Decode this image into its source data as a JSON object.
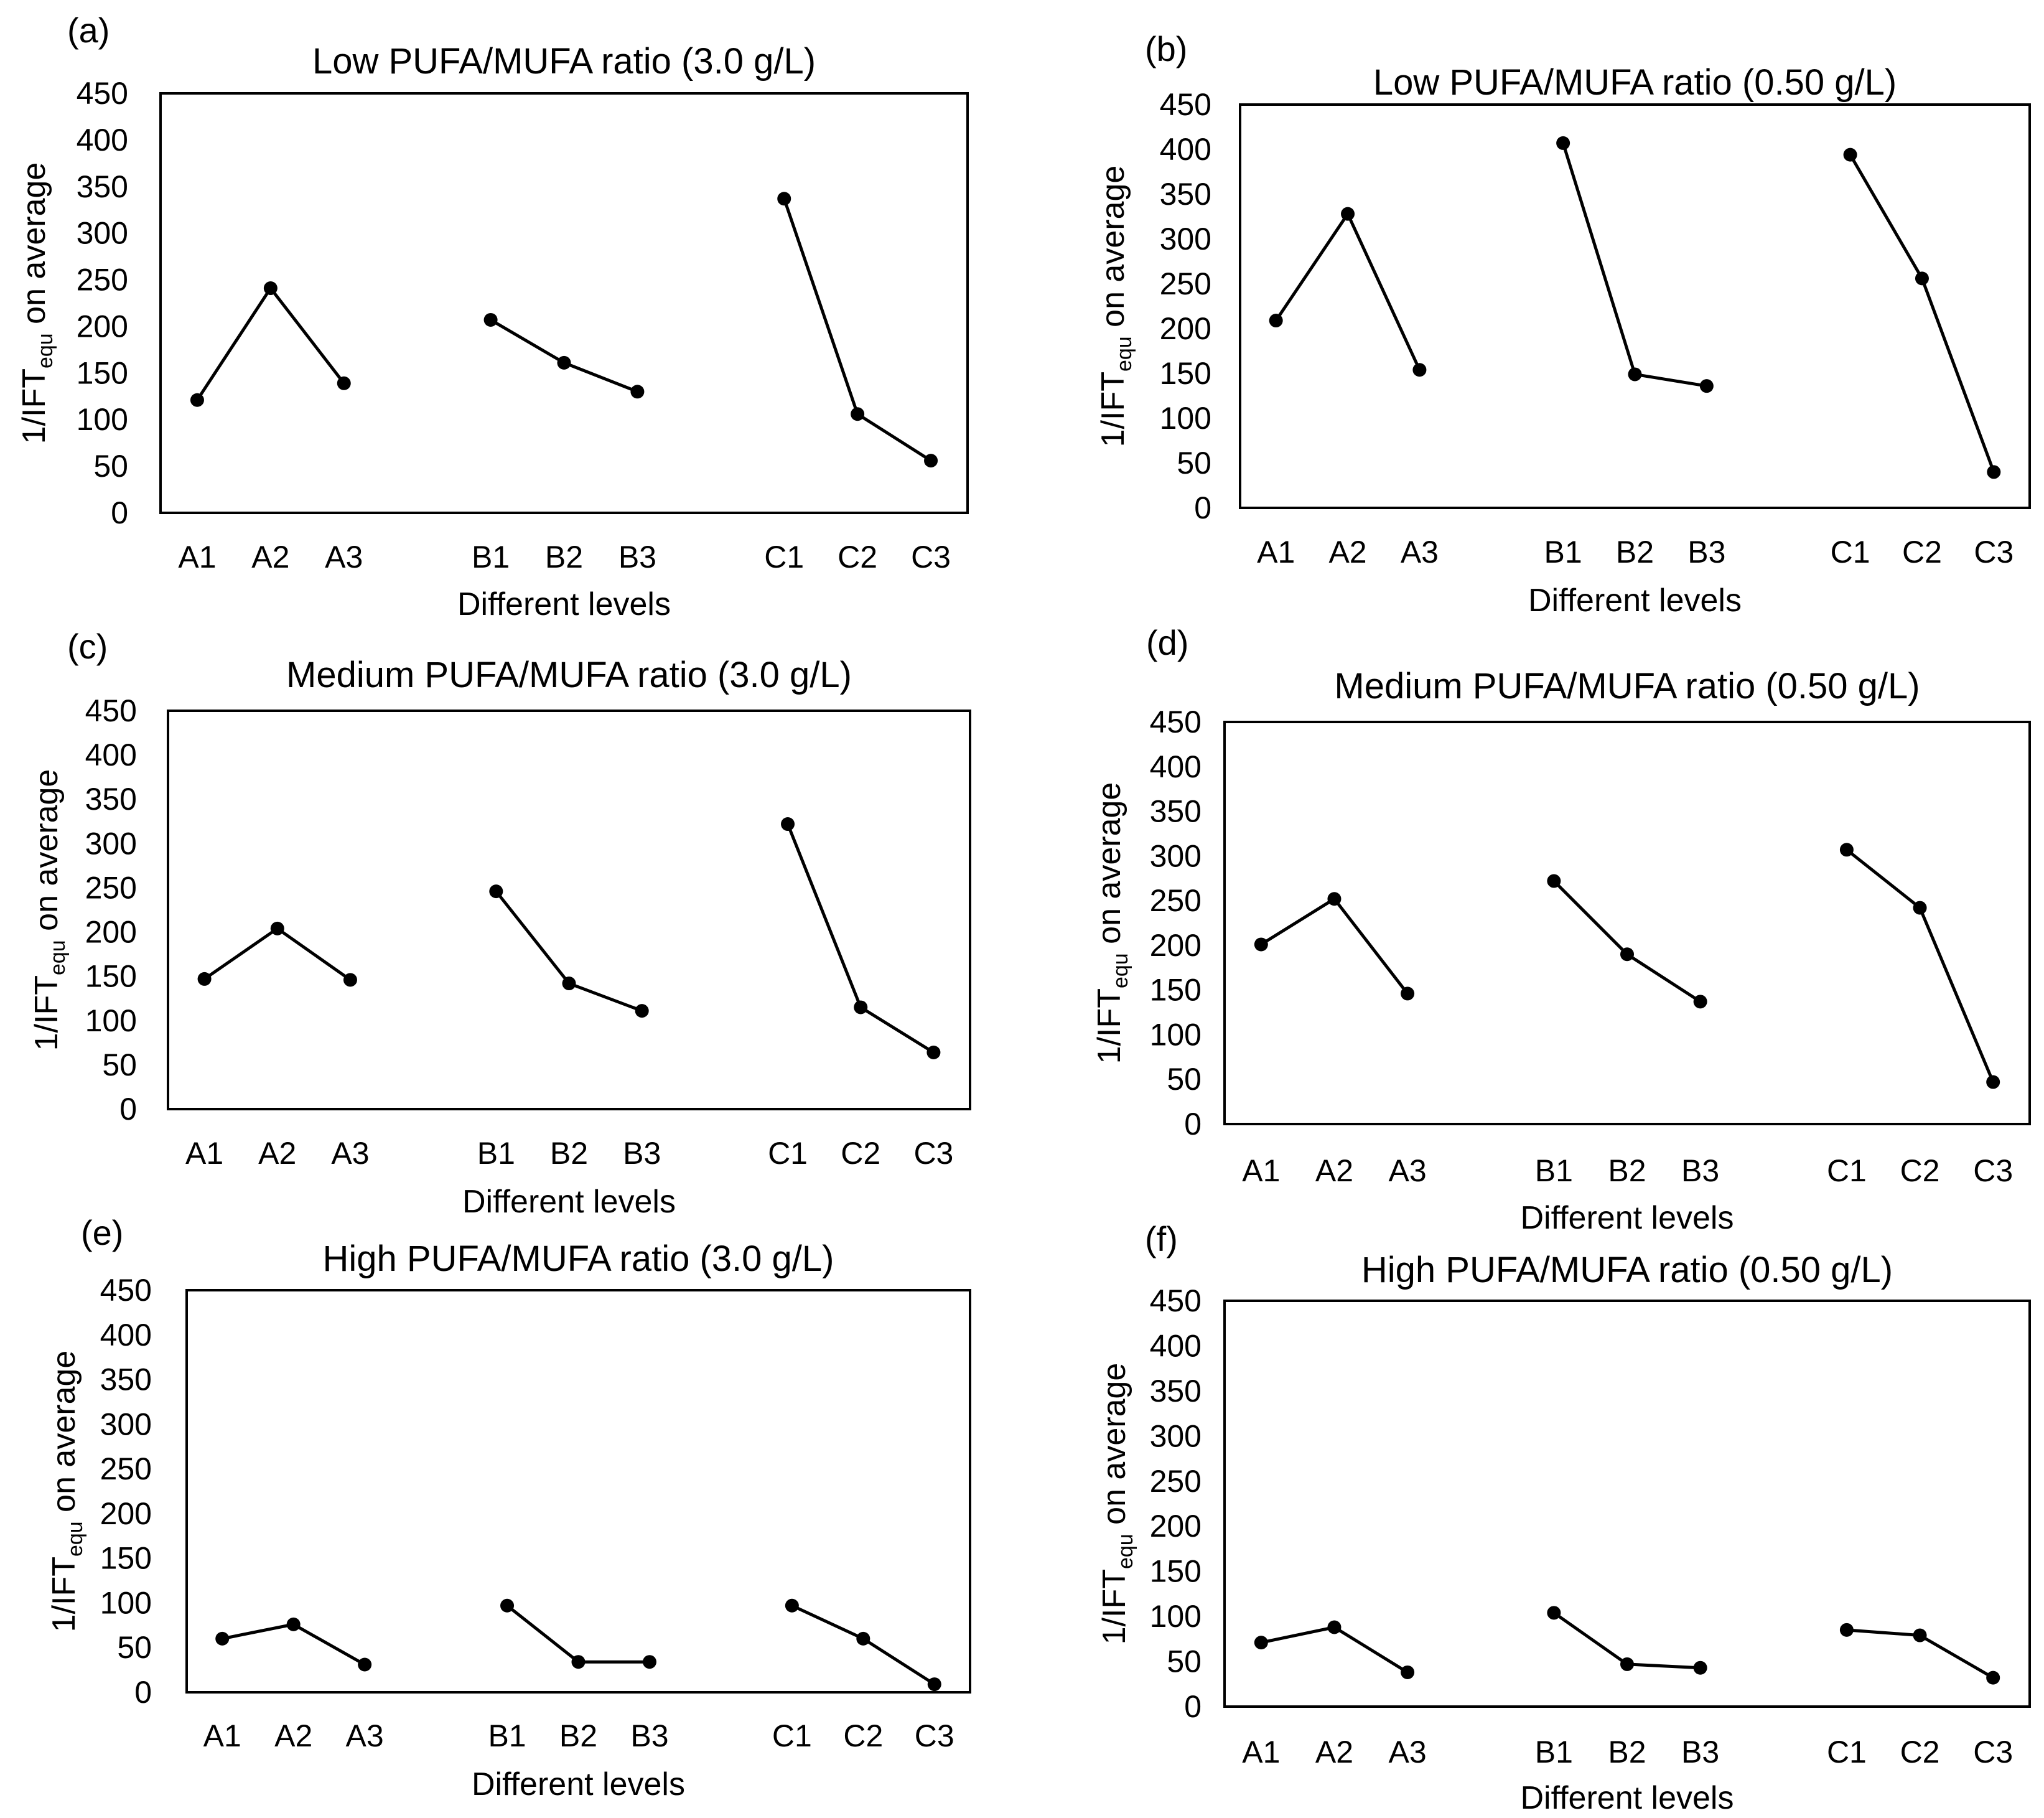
{
  "chart_data": [
    {
      "type": "line",
      "panel": "(a)",
      "title": "Low PUFA/MUFA ratio (3.0 g/L)",
      "xlabel": "Different levels",
      "ylabel": {
        "prefix": "1/IFT",
        "subscript": "equ",
        "suffix": " on average"
      },
      "ylim": [
        0,
        450
      ],
      "yticks": [
        "0",
        "50",
        "100",
        "150",
        "200",
        "250",
        "300",
        "350",
        "400",
        "450"
      ],
      "grid": false,
      "groups": [
        {
          "name": "A",
          "categories": [
            "A1",
            "A2",
            "A3"
          ],
          "values": [
            121,
            241,
            139
          ]
        },
        {
          "name": "B",
          "categories": [
            "B1",
            "B2",
            "B3"
          ],
          "values": [
            207,
            161,
            130
          ]
        },
        {
          "name": "C",
          "categories": [
            "C1",
            "C2",
            "C3"
          ],
          "values": [
            337,
            106,
            56
          ]
        }
      ]
    },
    {
      "type": "line",
      "panel": "(b)",
      "title": "Low PUFA/MUFA ratio (0.50 g/L)",
      "xlabel": "Different levels",
      "ylabel": {
        "prefix": "1/IFT",
        "subscript": "equ",
        "suffix": " on average"
      },
      "ylim": [
        0,
        450
      ],
      "yticks": [
        "0",
        "50",
        "100",
        "150",
        "200",
        "250",
        "300",
        "350",
        "400",
        "450"
      ],
      "grid": false,
      "groups": [
        {
          "name": "A",
          "categories": [
            "A1",
            "A2",
            "A3"
          ],
          "values": [
            209,
            328,
            154
          ]
        },
        {
          "name": "B",
          "categories": [
            "B1",
            "B2",
            "B3"
          ],
          "values": [
            407,
            149,
            136
          ]
        },
        {
          "name": "C",
          "categories": [
            "C1",
            "C2",
            "C3"
          ],
          "values": [
            394,
            256,
            40
          ]
        }
      ]
    },
    {
      "type": "line",
      "panel": "(c)",
      "title": "Medium PUFA/MUFA ratio (3.0 g/L)",
      "xlabel": "Different levels",
      "ylabel": {
        "prefix": "1/IFT",
        "subscript": "equ",
        "suffix": " on average"
      },
      "ylim": [
        0,
        450
      ],
      "yticks": [
        "0",
        "50",
        "100",
        "150",
        "200",
        "250",
        "300",
        "350",
        "400",
        "450"
      ],
      "grid": false,
      "groups": [
        {
          "name": "A",
          "categories": [
            "A1",
            "A2",
            "A3"
          ],
          "values": [
            147,
            204,
            146
          ]
        },
        {
          "name": "B",
          "categories": [
            "B1",
            "B2",
            "B3"
          ],
          "values": [
            246,
            142,
            111
          ]
        },
        {
          "name": "C",
          "categories": [
            "C1",
            "C2",
            "C3"
          ],
          "values": [
            322,
            115,
            64
          ]
        }
      ]
    },
    {
      "type": "line",
      "panel": "(d)",
      "title": "Medium PUFA/MUFA ratio (0.50 g/L)",
      "xlabel": "Different levels",
      "ylabel": {
        "prefix": "1/IFT",
        "subscript": "equ",
        "suffix": " on average"
      },
      "ylim": [
        0,
        450
      ],
      "yticks": [
        "0",
        "50",
        "100",
        "150",
        "200",
        "250",
        "300",
        "350",
        "400",
        "450"
      ],
      "grid": false,
      "groups": [
        {
          "name": "A",
          "categories": [
            "A1",
            "A2",
            "A3"
          ],
          "values": [
            201,
            252,
            146
          ]
        },
        {
          "name": "B",
          "categories": [
            "B1",
            "B2",
            "B3"
          ],
          "values": [
            272,
            190,
            137
          ]
        },
        {
          "name": "C",
          "categories": [
            "C1",
            "C2",
            "C3"
          ],
          "values": [
            307,
            242,
            47
          ]
        }
      ]
    },
    {
      "type": "line",
      "panel": "(e)",
      "title": "High PUFA/MUFA ratio (3.0 g/L)",
      "xlabel": "Different levels",
      "ylabel": {
        "prefix": "1/IFT",
        "subscript": "equ",
        "suffix": " on average"
      },
      "ylim": [
        0,
        450
      ],
      "yticks": [
        "0",
        "50",
        "100",
        "150",
        "200",
        "250",
        "300",
        "350",
        "400",
        "450"
      ],
      "grid": false,
      "groups": [
        {
          "name": "A",
          "categories": [
            "A1",
            "A2",
            "A3"
          ],
          "values": [
            60,
            76,
            31
          ]
        },
        {
          "name": "B",
          "categories": [
            "B1",
            "B2",
            "B3"
          ],
          "values": [
            97,
            34,
            34
          ]
        },
        {
          "name": "C",
          "categories": [
            "C1",
            "C2",
            "C3"
          ],
          "values": [
            97,
            60,
            9
          ]
        }
      ]
    },
    {
      "type": "line",
      "panel": "(f)",
      "title": "High PUFA/MUFA ratio (0.50 g/L)",
      "xlabel": "Different levels",
      "ylabel": {
        "prefix": "1/IFT",
        "subscript": "equ",
        "suffix": " on average"
      },
      "ylim": [
        0,
        450
      ],
      "yticks": [
        "0",
        "50",
        "100",
        "150",
        "200",
        "250",
        "300",
        "350",
        "400",
        "450"
      ],
      "grid": false,
      "groups": [
        {
          "name": "A",
          "categories": [
            "A1",
            "A2",
            "A3"
          ],
          "values": [
            71,
            88,
            38
          ]
        },
        {
          "name": "B",
          "categories": [
            "B1",
            "B2",
            "B3"
          ],
          "values": [
            104,
            47,
            43
          ]
        },
        {
          "name": "C",
          "categories": [
            "C1",
            "C2",
            "C3"
          ],
          "values": [
            85,
            79,
            32
          ]
        }
      ]
    }
  ]
}
